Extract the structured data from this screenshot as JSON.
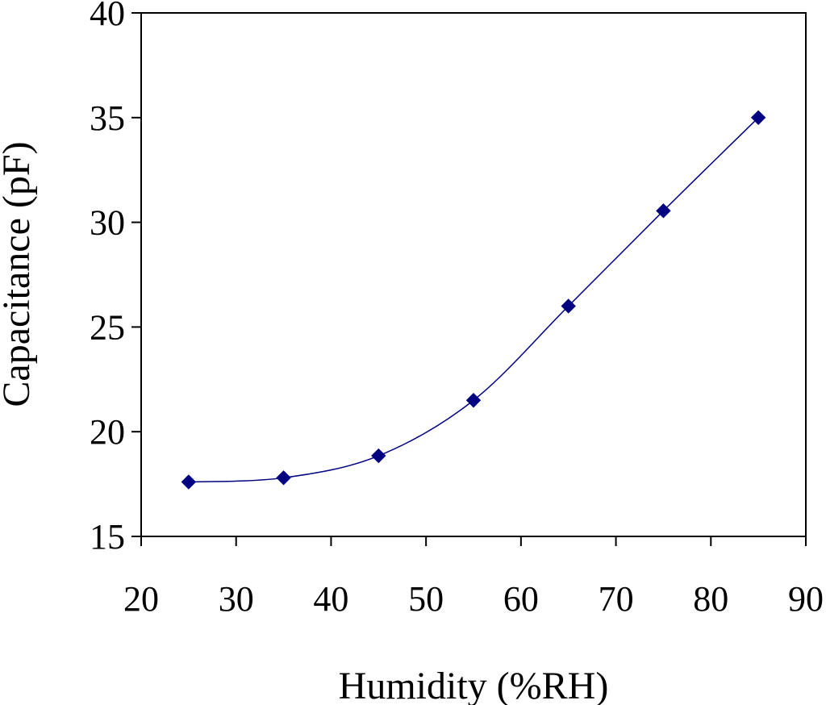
{
  "chart_data": {
    "type": "line",
    "title": "",
    "xlabel": "Humidity (%RH)",
    "ylabel": "Capacitance (pF)",
    "xlim": [
      20,
      90
    ],
    "ylim": [
      15,
      40
    ],
    "x_ticks": [
      20,
      30,
      40,
      50,
      60,
      70,
      80,
      90
    ],
    "y_ticks": [
      15,
      20,
      25,
      30,
      35,
      40
    ],
    "grid": false,
    "legend": "none",
    "line_style": "smoothed",
    "marker": "diamond",
    "series": [
      {
        "color": "#000080",
        "x": [
          25,
          35,
          45,
          55,
          65,
          75,
          85
        ],
        "y": [
          17.6,
          17.8,
          18.85,
          21.5,
          26.0,
          30.55,
          35.0
        ]
      }
    ]
  }
}
